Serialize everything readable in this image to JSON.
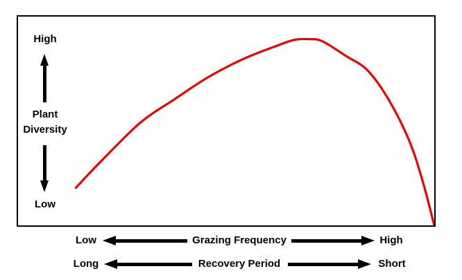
{
  "colors": {
    "curve": "#EE0000",
    "ink": "#000000",
    "background": "#FFFFFF"
  },
  "y_axis": {
    "top_label": "High",
    "title_line1": "Plant",
    "title_line2": "Diversity",
    "bottom_label": "Low"
  },
  "x_axes": [
    {
      "left_label": "Low",
      "title": "Grazing Frequency",
      "right_label": "High"
    },
    {
      "left_label": "Long",
      "title": "Recovery Period",
      "right_label": "Short"
    }
  ],
  "chart_data": {
    "type": "line",
    "title": "",
    "xlabel": "Grazing Frequency (Low to High) / Recovery Period (Long to Short)",
    "ylabel": "Plant Diversity (Low to High)",
    "x_range": [
      0,
      1
    ],
    "y_range": [
      0,
      1
    ],
    "grid": false,
    "legend": "none",
    "description": "Hump-shaped (inverted-U) conceptual curve: plant diversity rises from low at low grazing frequency / long recovery period, peaks at intermediate-high grazing frequency, then falls sharply to lowest diversity at high grazing frequency / short recovery period.",
    "series": [
      {
        "name": "Plant Diversity",
        "color": "#EE0000",
        "points": [
          [
            0.139,
            0.18
          ],
          [
            0.192,
            0.292
          ],
          [
            0.292,
            0.489
          ],
          [
            0.375,
            0.603
          ],
          [
            0.458,
            0.711
          ],
          [
            0.541,
            0.797
          ],
          [
            0.624,
            0.862
          ],
          [
            0.665,
            0.889
          ],
          [
            0.698,
            0.892
          ],
          [
            0.731,
            0.882
          ],
          [
            0.789,
            0.81
          ],
          [
            0.839,
            0.744
          ],
          [
            0.889,
            0.607
          ],
          [
            0.939,
            0.41
          ],
          [
            0.972,
            0.213
          ],
          [
            1.0,
            0.0
          ]
        ]
      }
    ]
  }
}
